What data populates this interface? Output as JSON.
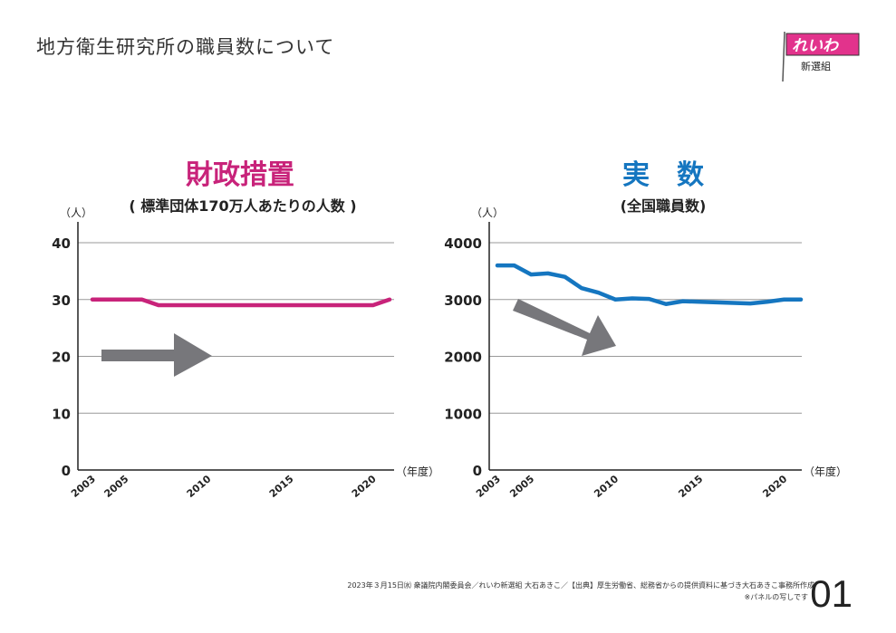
{
  "title": "地方衛生研究所の職員数について",
  "logo": {
    "text": "れいわ",
    "sub": "新選組",
    "brand_color": "#e2338c"
  },
  "footer": {
    "line1": "2023年３月15日㈬ 衆議院内閣委員会／れいわ新選組 大石あきこ／【出典】厚生労働省、総務省からの提供資料に基づき大石あきこ事務所作成",
    "line2": "※パネルの写しです",
    "page_number": "01"
  },
  "chart_data": [
    {
      "type": "line",
      "title": "財政措置",
      "subtitle": "( 標準団体170万人あたりの人数 )",
      "title_color": "#c8237a",
      "line_color": "#c8237a",
      "ylabel": "（人）",
      "xlabel": "（年度）",
      "ylim": [
        0,
        40
      ],
      "yticks": [
        0,
        10,
        20,
        30,
        40
      ],
      "xticks": [
        2003,
        2005,
        2010,
        2015,
        2020
      ],
      "grid": true,
      "x": [
        2003,
        2004,
        2005,
        2006,
        2007,
        2008,
        2009,
        2010,
        2011,
        2012,
        2013,
        2014,
        2015,
        2016,
        2017,
        2018,
        2019,
        2020,
        2021
      ],
      "values": [
        30,
        30,
        30,
        30,
        29,
        29,
        29,
        29,
        29,
        29,
        29,
        29,
        29,
        29,
        29,
        29,
        29,
        29,
        30
      ],
      "annotation": "flat-arrow"
    },
    {
      "type": "line",
      "title": "実　数",
      "subtitle": "(全国職員数)",
      "title_color": "#1576c0",
      "line_color": "#1576c0",
      "ylabel": "（人）",
      "xlabel": "（年度）",
      "ylim": [
        0,
        4000
      ],
      "yticks": [
        0,
        1000,
        2000,
        3000,
        4000
      ],
      "xticks": [
        2003,
        2005,
        2010,
        2015,
        2020
      ],
      "grid": true,
      "x": [
        2003,
        2004,
        2005,
        2006,
        2007,
        2008,
        2009,
        2010,
        2011,
        2012,
        2013,
        2014,
        2015,
        2016,
        2017,
        2018,
        2019,
        2020,
        2021
      ],
      "values": [
        3600,
        3600,
        3440,
        3460,
        3400,
        3200,
        3120,
        3000,
        3020,
        3010,
        2920,
        2970,
        2960,
        2950,
        2940,
        2930,
        2960,
        3000,
        3000
      ],
      "annotation": "down-arrow"
    }
  ]
}
